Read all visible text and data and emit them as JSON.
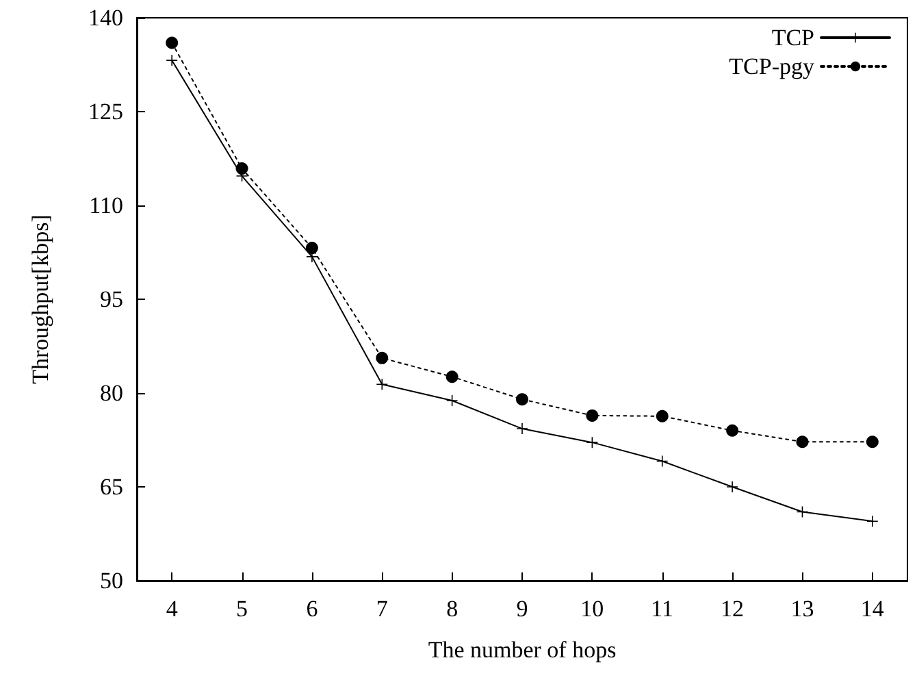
{
  "chart_data": {
    "type": "line",
    "xlabel": "The number of hops",
    "ylabel": "Throughput[kbps]",
    "categories": [
      "4",
      "5",
      "6",
      "7",
      "8",
      "9",
      "10",
      "11",
      "12",
      "13",
      "14"
    ],
    "series": [
      {
        "name": "TCP",
        "color": "#000000",
        "marker": "cross",
        "line_style": "solid",
        "values": [
          133.2,
          114.7,
          101.8,
          81.4,
          78.8,
          74.3,
          72.1,
          69.1,
          65.0,
          61.0,
          59.5
        ]
      },
      {
        "name": "TCP-pgy",
        "color": "#000000",
        "marker": "circle",
        "line_style": "dotted",
        "values": [
          136.0,
          115.9,
          103.2,
          85.6,
          82.6,
          79.0,
          76.4,
          76.3,
          74.0,
          72.2,
          72.2
        ]
      }
    ],
    "ylim": [
      50,
      140
    ],
    "yticks": [
      50,
      65,
      80,
      95,
      110,
      125,
      140
    ],
    "grid": false,
    "legend": "top right"
  }
}
